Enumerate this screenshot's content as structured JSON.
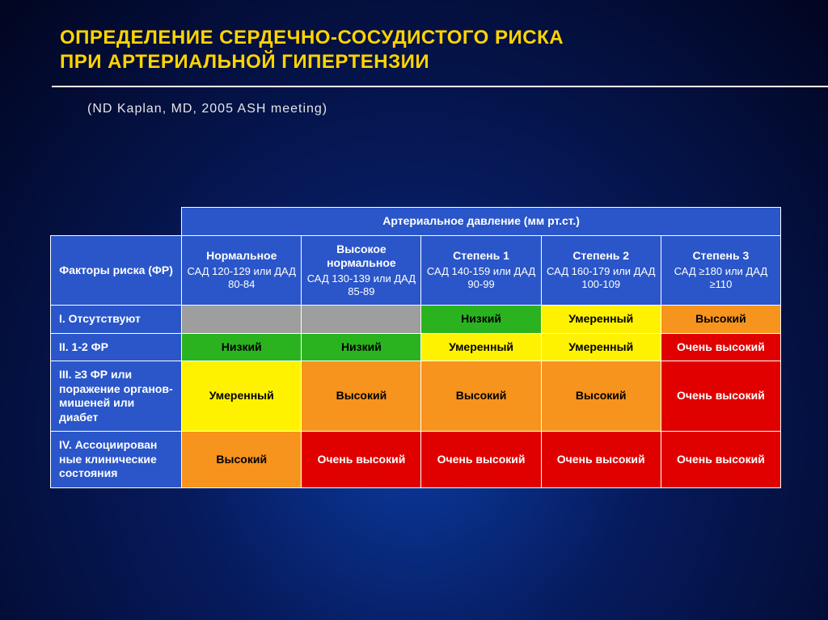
{
  "title_line1": "ОПРЕДЕЛЕНИЕ СЕРДЕЧНО-СОСУДИСТОГО РИСКА",
  "title_line2": "ПРИ АРТЕРИАЛЬНОЙ ГИПЕРТЕНЗИИ",
  "subtitle": "(ND Kaplan, MD, 2005 ASH meeting)",
  "spanner": "Артериальное давление (мм рт.ст.)",
  "factors_header": "Факторы риска (ФР)",
  "cols": [
    {
      "title": "Нормальное",
      "sub": "САД 120-129 или ДАД 80-84"
    },
    {
      "title": "Высокое нормальное",
      "sub": "САД 130-139 или ДАД 85-89"
    },
    {
      "title": "Степень 1",
      "sub": "САД 140-159 или ДАД 90-99"
    },
    {
      "title": "Степень 2",
      "sub": "САД 160-179 или ДАД 100-109"
    },
    {
      "title": "Степень 3",
      "sub": "САД ≥180 или ДАД ≥110"
    }
  ],
  "rows": [
    {
      "label": "I. Отсутствуют"
    },
    {
      "label": "II. 1-2 ФР"
    },
    {
      "label": "III. ≥3 ФР или поражение органов-мишеней или диабет"
    },
    {
      "label": "IV. Ассоциирован ные клинические состояния"
    }
  ],
  "risk_labels": {
    "low": "Низкий",
    "moderate": "Умеренный",
    "high": "Высокий",
    "very_high": "Очень высокий"
  },
  "colors": {
    "header_blue": "#2a56c9",
    "grey": "#9e9e9e",
    "green": "#2bb31f",
    "yellow": "#fff200",
    "orange": "#f7941d",
    "red": "#e00000"
  },
  "matrix": [
    [
      {
        "bg": "grey",
        "label": null,
        "fg": "black"
      },
      {
        "bg": "grey",
        "label": null,
        "fg": "black"
      },
      {
        "bg": "green",
        "label": "low",
        "fg": "black"
      },
      {
        "bg": "yellow",
        "label": "moderate",
        "fg": "black"
      },
      {
        "bg": "orange",
        "label": "high",
        "fg": "black"
      }
    ],
    [
      {
        "bg": "green",
        "label": "low",
        "fg": "black"
      },
      {
        "bg": "green",
        "label": "low",
        "fg": "black"
      },
      {
        "bg": "yellow",
        "label": "moderate",
        "fg": "black"
      },
      {
        "bg": "yellow",
        "label": "moderate",
        "fg": "black"
      },
      {
        "bg": "red",
        "label": "very_high",
        "fg": "white"
      }
    ],
    [
      {
        "bg": "yellow",
        "label": "moderate",
        "fg": "black"
      },
      {
        "bg": "orange",
        "label": "high",
        "fg": "black"
      },
      {
        "bg": "orange",
        "label": "high",
        "fg": "black"
      },
      {
        "bg": "orange",
        "label": "high",
        "fg": "black"
      },
      {
        "bg": "red",
        "label": "very_high",
        "fg": "white"
      }
    ],
    [
      {
        "bg": "orange",
        "label": "high",
        "fg": "black"
      },
      {
        "bg": "red",
        "label": "very_high",
        "fg": "white"
      },
      {
        "bg": "red",
        "label": "very_high",
        "fg": "white"
      },
      {
        "bg": "red",
        "label": "very_high",
        "fg": "white"
      },
      {
        "bg": "red",
        "label": "very_high",
        "fg": "white"
      }
    ]
  ]
}
